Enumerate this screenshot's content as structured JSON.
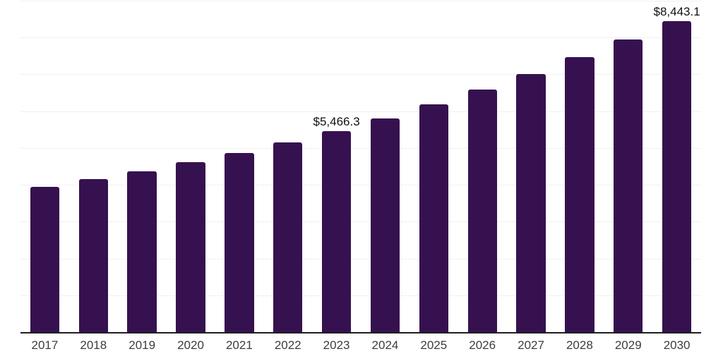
{
  "chart_data": {
    "type": "bar",
    "title": "",
    "xlabel": "",
    "ylabel": "",
    "categories": [
      "2017",
      "2018",
      "2019",
      "2020",
      "2021",
      "2022",
      "2023",
      "2024",
      "2025",
      "2026",
      "2027",
      "2028",
      "2029",
      "2030"
    ],
    "values": [
      3950,
      4150,
      4375,
      4610,
      4855,
      5150,
      5466.3,
      5800,
      6185,
      6580,
      7000,
      7470,
      7950,
      8443.1
    ],
    "annotations": [
      {
        "category": "2023",
        "text": "$5,466.3"
      },
      {
        "category": "2030",
        "text": "$8,443.1"
      }
    ],
    "ylim": [
      0,
      9000
    ],
    "gridlines": {
      "visible": true,
      "step": 1000
    },
    "legend": "none",
    "colors": {
      "bar": "#36114F",
      "gridline": "#f1f1f1",
      "axis": "#1f1f1f",
      "tick_label": "#3d3d3d",
      "annotation": "#111111"
    }
  }
}
